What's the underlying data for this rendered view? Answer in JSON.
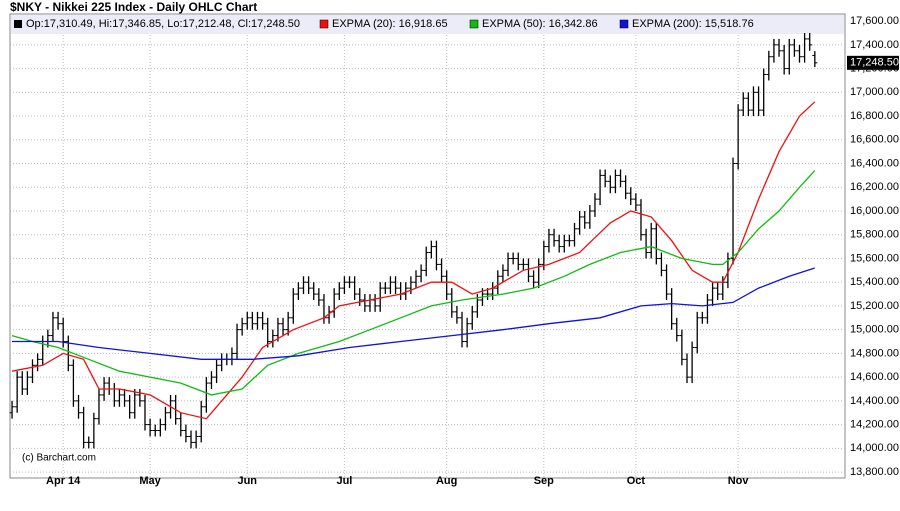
{
  "chart_data": {
    "type": "ohlc",
    "title": "$NKY - Nikkei 225 Index - Daily OHLC Chart",
    "credit": "(c) Barchart.com",
    "last_price_label": "17,248.50",
    "ohlc": {
      "name": "Op:17,310.49, Hi:17,346.85, Lo:17,212.48, Cl:17,248.50",
      "color": "#000000",
      "open": [
        14300,
        14350,
        14600,
        14500,
        14600,
        14700,
        14750,
        14900,
        14950,
        15100,
        15050,
        14900,
        14700,
        14400,
        14300,
        14050,
        14050,
        14250,
        14450,
        14550,
        14500,
        14400,
        14450,
        14400,
        14300,
        14450,
        14400,
        14200,
        14150,
        14150,
        14200,
        14300,
        14400,
        14250,
        14150,
        14100,
        14050,
        14100,
        14350,
        14550,
        14600,
        14700,
        14750,
        14750,
        14800,
        15000,
        15050,
        15100,
        15050,
        15100,
        15050,
        14900,
        14950,
        15050,
        15000,
        15100,
        15300,
        15350,
        15400,
        15350,
        15300,
        15250,
        15100,
        15150,
        15300,
        15350,
        15400,
        15400,
        15300,
        15250,
        15200,
        15250,
        15200,
        15350,
        15350,
        15400,
        15350,
        15300,
        15350,
        15400,
        15450,
        15500,
        15650,
        15700,
        15550,
        15450,
        15300,
        15150,
        15100,
        14900,
        15050,
        15150,
        15250,
        15300,
        15300,
        15350,
        15450,
        15500,
        15600,
        15600,
        15550,
        15550,
        15450,
        15400,
        15550,
        15700,
        15800,
        15750,
        15700,
        15750,
        15750,
        15850,
        15950,
        15900,
        16000,
        16100,
        16300,
        16250,
        16200,
        16300,
        16250,
        16150,
        16100,
        16050,
        15800,
        15650,
        15850,
        15600,
        15500,
        15300,
        15050,
        14950,
        14750,
        14600,
        14850,
        15100,
        15100,
        15250,
        15350,
        15300,
        15400,
        15600,
        16400,
        16850,
        16950,
        16850,
        17000,
        16850,
        17150,
        17300,
        17400,
        17350,
        17200,
        17400,
        17350,
        17300,
        17450,
        17310.49
      ],
      "high": [
        14400,
        14650,
        14650,
        14650,
        14750,
        14800,
        14950,
        15000,
        15150,
        15150,
        15100,
        14950,
        14750,
        14450,
        14350,
        14100,
        14300,
        14500,
        14600,
        14600,
        14550,
        14500,
        14500,
        14450,
        14500,
        14500,
        14450,
        14250,
        14200,
        14250,
        14350,
        14450,
        14450,
        14300,
        14200,
        14150,
        14150,
        14400,
        14600,
        14650,
        14750,
        14800,
        14800,
        14850,
        15050,
        15100,
        15150,
        15150,
        15150,
        15150,
        15100,
        15000,
        15100,
        15100,
        15150,
        15350,
        15400,
        15450,
        15450,
        15400,
        15350,
        15300,
        15200,
        15350,
        15400,
        15450,
        15450,
        15450,
        15350,
        15300,
        15300,
        15300,
        15400,
        15400,
        15450,
        15450,
        15400,
        15400,
        15450,
        15500,
        15550,
        15700,
        15750,
        15750,
        15600,
        15500,
        15350,
        15200,
        15150,
        15100,
        15200,
        15300,
        15350,
        15350,
        15400,
        15500,
        15550,
        15650,
        15650,
        15650,
        15600,
        15600,
        15500,
        15600,
        15750,
        15850,
        15850,
        15800,
        15800,
        15800,
        15900,
        16000,
        16000,
        16050,
        16150,
        16350,
        16350,
        16300,
        16350,
        16350,
        16300,
        16200,
        16150,
        16100,
        15850,
        15900,
        15900,
        15650,
        15550,
        15350,
        15100,
        15000,
        14800,
        14900,
        15150,
        15150,
        15300,
        15400,
        15400,
        15450,
        15650,
        16450,
        16900,
        17000,
        17000,
        17050,
        17050,
        17200,
        17350,
        17450,
        17450,
        17400,
        17450,
        17450,
        17400,
        17500,
        17500,
        17346.85
      ],
      "low": [
        14250,
        14300,
        14450,
        14450,
        14550,
        14650,
        14700,
        14850,
        14900,
        15000,
        14850,
        14650,
        14350,
        14250,
        14000,
        14000,
        14000,
        14200,
        14400,
        14450,
        14350,
        14350,
        14350,
        14250,
        14250,
        14350,
        14150,
        14100,
        14100,
        14100,
        14150,
        14250,
        14200,
        14100,
        14050,
        14000,
        14000,
        14050,
        14300,
        14500,
        14550,
        14650,
        14700,
        14700,
        14750,
        14950,
        15000,
        15000,
        15000,
        15000,
        14850,
        14850,
        14900,
        14950,
        14950,
        15050,
        15250,
        15300,
        15300,
        15250,
        15200,
        15050,
        15050,
        15100,
        15250,
        15300,
        15350,
        15250,
        15200,
        15150,
        15150,
        15150,
        15150,
        15300,
        15300,
        15300,
        15250,
        15250,
        15300,
        15350,
        15400,
        15450,
        15600,
        15500,
        15400,
        15250,
        15100,
        15050,
        14850,
        14850,
        15000,
        15100,
        15200,
        15250,
        15250,
        15300,
        15400,
        15450,
        15550,
        15500,
        15500,
        15400,
        15350,
        15350,
        15500,
        15650,
        15700,
        15650,
        15650,
        15700,
        15700,
        15800,
        15850,
        15850,
        15950,
        16050,
        16200,
        16150,
        16150,
        16200,
        16100,
        16050,
        16000,
        15750,
        15600,
        15600,
        15550,
        15450,
        15250,
        15000,
        14900,
        14700,
        14550,
        14550,
        14800,
        15050,
        15050,
        15200,
        15250,
        15250,
        15350,
        15550,
        16350,
        16800,
        16800,
        16800,
        16800,
        16800,
        17100,
        17250,
        17300,
        17150,
        17150,
        17300,
        17250,
        17250,
        17350,
        17212.48
      ],
      "close": [
        14350,
        14600,
        14500,
        14600,
        14700,
        14750,
        14900,
        14950,
        15100,
        15050,
        14900,
        14700,
        14400,
        14300,
        14050,
        14050,
        14250,
        14450,
        14550,
        14500,
        14400,
        14450,
        14400,
        14300,
        14450,
        14400,
        14200,
        14150,
        14150,
        14200,
        14300,
        14400,
        14250,
        14150,
        14100,
        14050,
        14100,
        14350,
        14550,
        14600,
        14700,
        14750,
        14750,
        14800,
        15000,
        15050,
        15100,
        15050,
        15100,
        15050,
        14900,
        14950,
        15050,
        15000,
        15100,
        15300,
        15350,
        15400,
        15350,
        15300,
        15250,
        15100,
        15150,
        15300,
        15350,
        15400,
        15400,
        15300,
        15250,
        15200,
        15250,
        15200,
        15350,
        15350,
        15400,
        15350,
        15300,
        15350,
        15400,
        15450,
        15500,
        15650,
        15700,
        15550,
        15450,
        15300,
        15150,
        15100,
        14900,
        15050,
        15150,
        15250,
        15300,
        15300,
        15350,
        15450,
        15500,
        15600,
        15600,
        15550,
        15550,
        15450,
        15400,
        15550,
        15700,
        15800,
        15750,
        15700,
        15750,
        15750,
        15850,
        15950,
        15900,
        16000,
        16100,
        16300,
        16250,
        16200,
        16300,
        16250,
        16150,
        16100,
        16050,
        15800,
        15650,
        15850,
        15600,
        15500,
        15300,
        15050,
        14950,
        14750,
        14600,
        14850,
        15100,
        15100,
        15250,
        15350,
        15300,
        15400,
        15600,
        16400,
        16850,
        16950,
        16850,
        17000,
        16850,
        17150,
        17300,
        17400,
        17350,
        17200,
        17400,
        17350,
        17300,
        17450,
        17400,
        17248.5
      ]
    },
    "series": [
      {
        "name": "EXPMA (20): 16,918.65",
        "color": "#ee1111",
        "x": [
          0,
          6,
          10,
          14,
          17,
          21,
          27,
          33,
          38,
          40,
          45,
          49,
          55,
          61,
          64,
          70,
          76,
          82,
          86,
          90,
          94,
          100,
          105,
          111,
          117,
          121,
          125,
          129,
          133,
          137,
          139,
          142,
          146,
          150,
          154,
          157
        ],
        "values": [
          14650,
          14700,
          14800,
          14750,
          14500,
          14500,
          14450,
          14300,
          14250,
          14350,
          14600,
          14850,
          15000,
          15100,
          15200,
          15250,
          15300,
          15400,
          15400,
          15300,
          15350,
          15500,
          15550,
          15650,
          15900,
          16000,
          15950,
          15750,
          15500,
          15400,
          15400,
          15650,
          16100,
          16500,
          16800,
          16920
        ]
      },
      {
        "name": "EXPMA (50): 16,342.86",
        "color": "#11bb11",
        "x": [
          0,
          4,
          9,
          15,
          21,
          27,
          33,
          39,
          45,
          50,
          56,
          64,
          70,
          76,
          82,
          88,
          96,
          102,
          108,
          113,
          119,
          125,
          131,
          137,
          139,
          142,
          146,
          150,
          154,
          157
        ],
        "values": [
          14950,
          14900,
          14850,
          14750,
          14650,
          14600,
          14550,
          14450,
          14500,
          14700,
          14800,
          14900,
          15000,
          15100,
          15200,
          15250,
          15300,
          15350,
          15450,
          15550,
          15650,
          15700,
          15600,
          15550,
          15550,
          15650,
          15850,
          16000,
          16200,
          16340
        ]
      },
      {
        "name": "EXPMA (200): 15,518.76",
        "color": "#1111dd",
        "x": [
          0,
          9,
          17,
          27,
          37,
          47,
          56,
          66,
          76,
          86,
          96,
          105,
          115,
          123,
          129,
          135,
          141,
          146,
          152,
          157
        ],
        "values": [
          14900,
          14900,
          14850,
          14800,
          14750,
          14750,
          14780,
          14850,
          14900,
          14950,
          15000,
          15050,
          15100,
          15200,
          15220,
          15200,
          15230,
          15350,
          15450,
          15520
        ]
      }
    ],
    "xlim": [
      -0.4,
      162.9
    ],
    "xticks": [
      {
        "value": 10,
        "label": "Apr 14"
      },
      {
        "value": 27,
        "label": "May"
      },
      {
        "value": 46,
        "label": "Jun"
      },
      {
        "value": 65,
        "label": "Jul"
      },
      {
        "value": 85,
        "label": "Aug"
      },
      {
        "value": 104,
        "label": "Sep"
      },
      {
        "value": 122,
        "label": "Oct"
      },
      {
        "value": 142,
        "label": "Nov"
      }
    ],
    "ylim": [
      13750,
      17660
    ],
    "yticks": [
      {
        "value": 13800,
        "label": "13,800.00"
      },
      {
        "value": 14000,
        "label": "14,000.00"
      },
      {
        "value": 14200,
        "label": "14,200.00"
      },
      {
        "value": 14400,
        "label": "14,400.00"
      },
      {
        "value": 14600,
        "label": "14,600.00"
      },
      {
        "value": 14800,
        "label": "14,800.00"
      },
      {
        "value": 15000,
        "label": "15,000.00"
      },
      {
        "value": 15200,
        "label": "15,200.00"
      },
      {
        "value": 15400,
        "label": "15,400.00"
      },
      {
        "value": 15600,
        "label": "15,600.00"
      },
      {
        "value": 15800,
        "label": "15,800.00"
      },
      {
        "value": 16000,
        "label": "16,000.00"
      },
      {
        "value": 16200,
        "label": "16,200.00"
      },
      {
        "value": 16400,
        "label": "16,400.00"
      },
      {
        "value": 16600,
        "label": "16,600.00"
      },
      {
        "value": 16800,
        "label": "16,800.00"
      },
      {
        "value": 17000,
        "label": "17,000.00"
      },
      {
        "value": 17200,
        "label": "17,200.00"
      },
      {
        "value": 17400,
        "label": "17,400.00"
      },
      {
        "value": 17600,
        "label": "17,600.00"
      }
    ],
    "grid": true
  }
}
